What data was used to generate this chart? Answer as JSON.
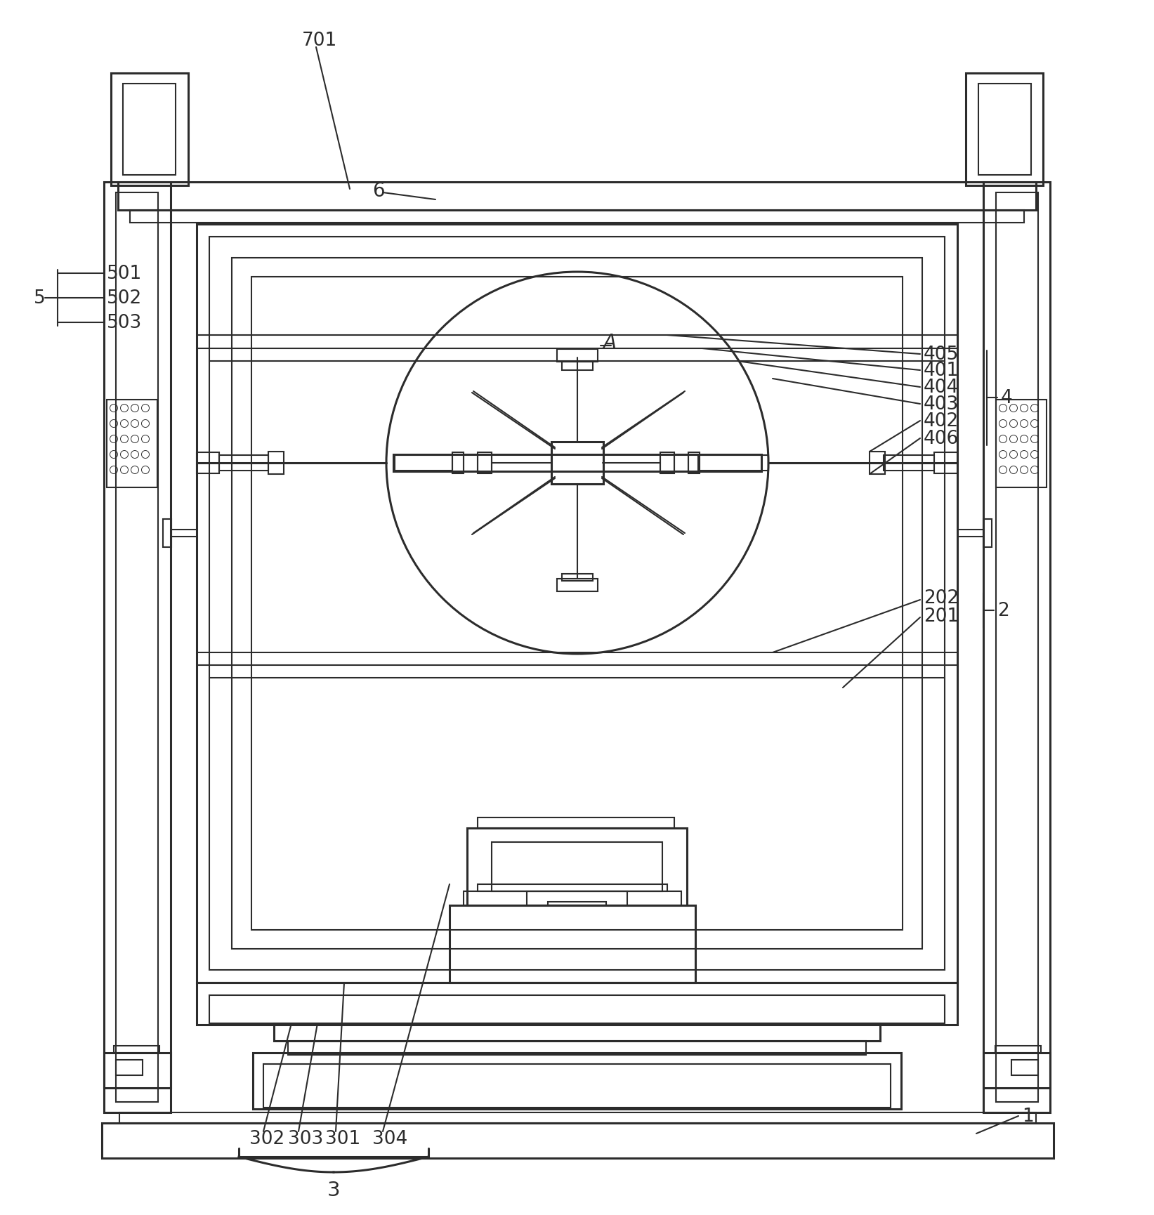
{
  "bg_color": "#ffffff",
  "line_color": "#2c2c2c",
  "fig_width": 16.43,
  "fig_height": 17.31
}
